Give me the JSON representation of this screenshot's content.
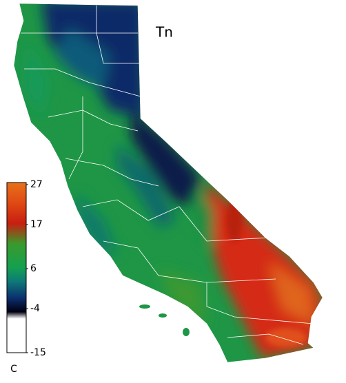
{
  "map": {
    "title": "Tn"
  },
  "colorbar": {
    "unit": "C",
    "lim": [
      -15,
      27
    ],
    "ticks": [
      27,
      17,
      6,
      -4,
      -15
    ]
  }
}
